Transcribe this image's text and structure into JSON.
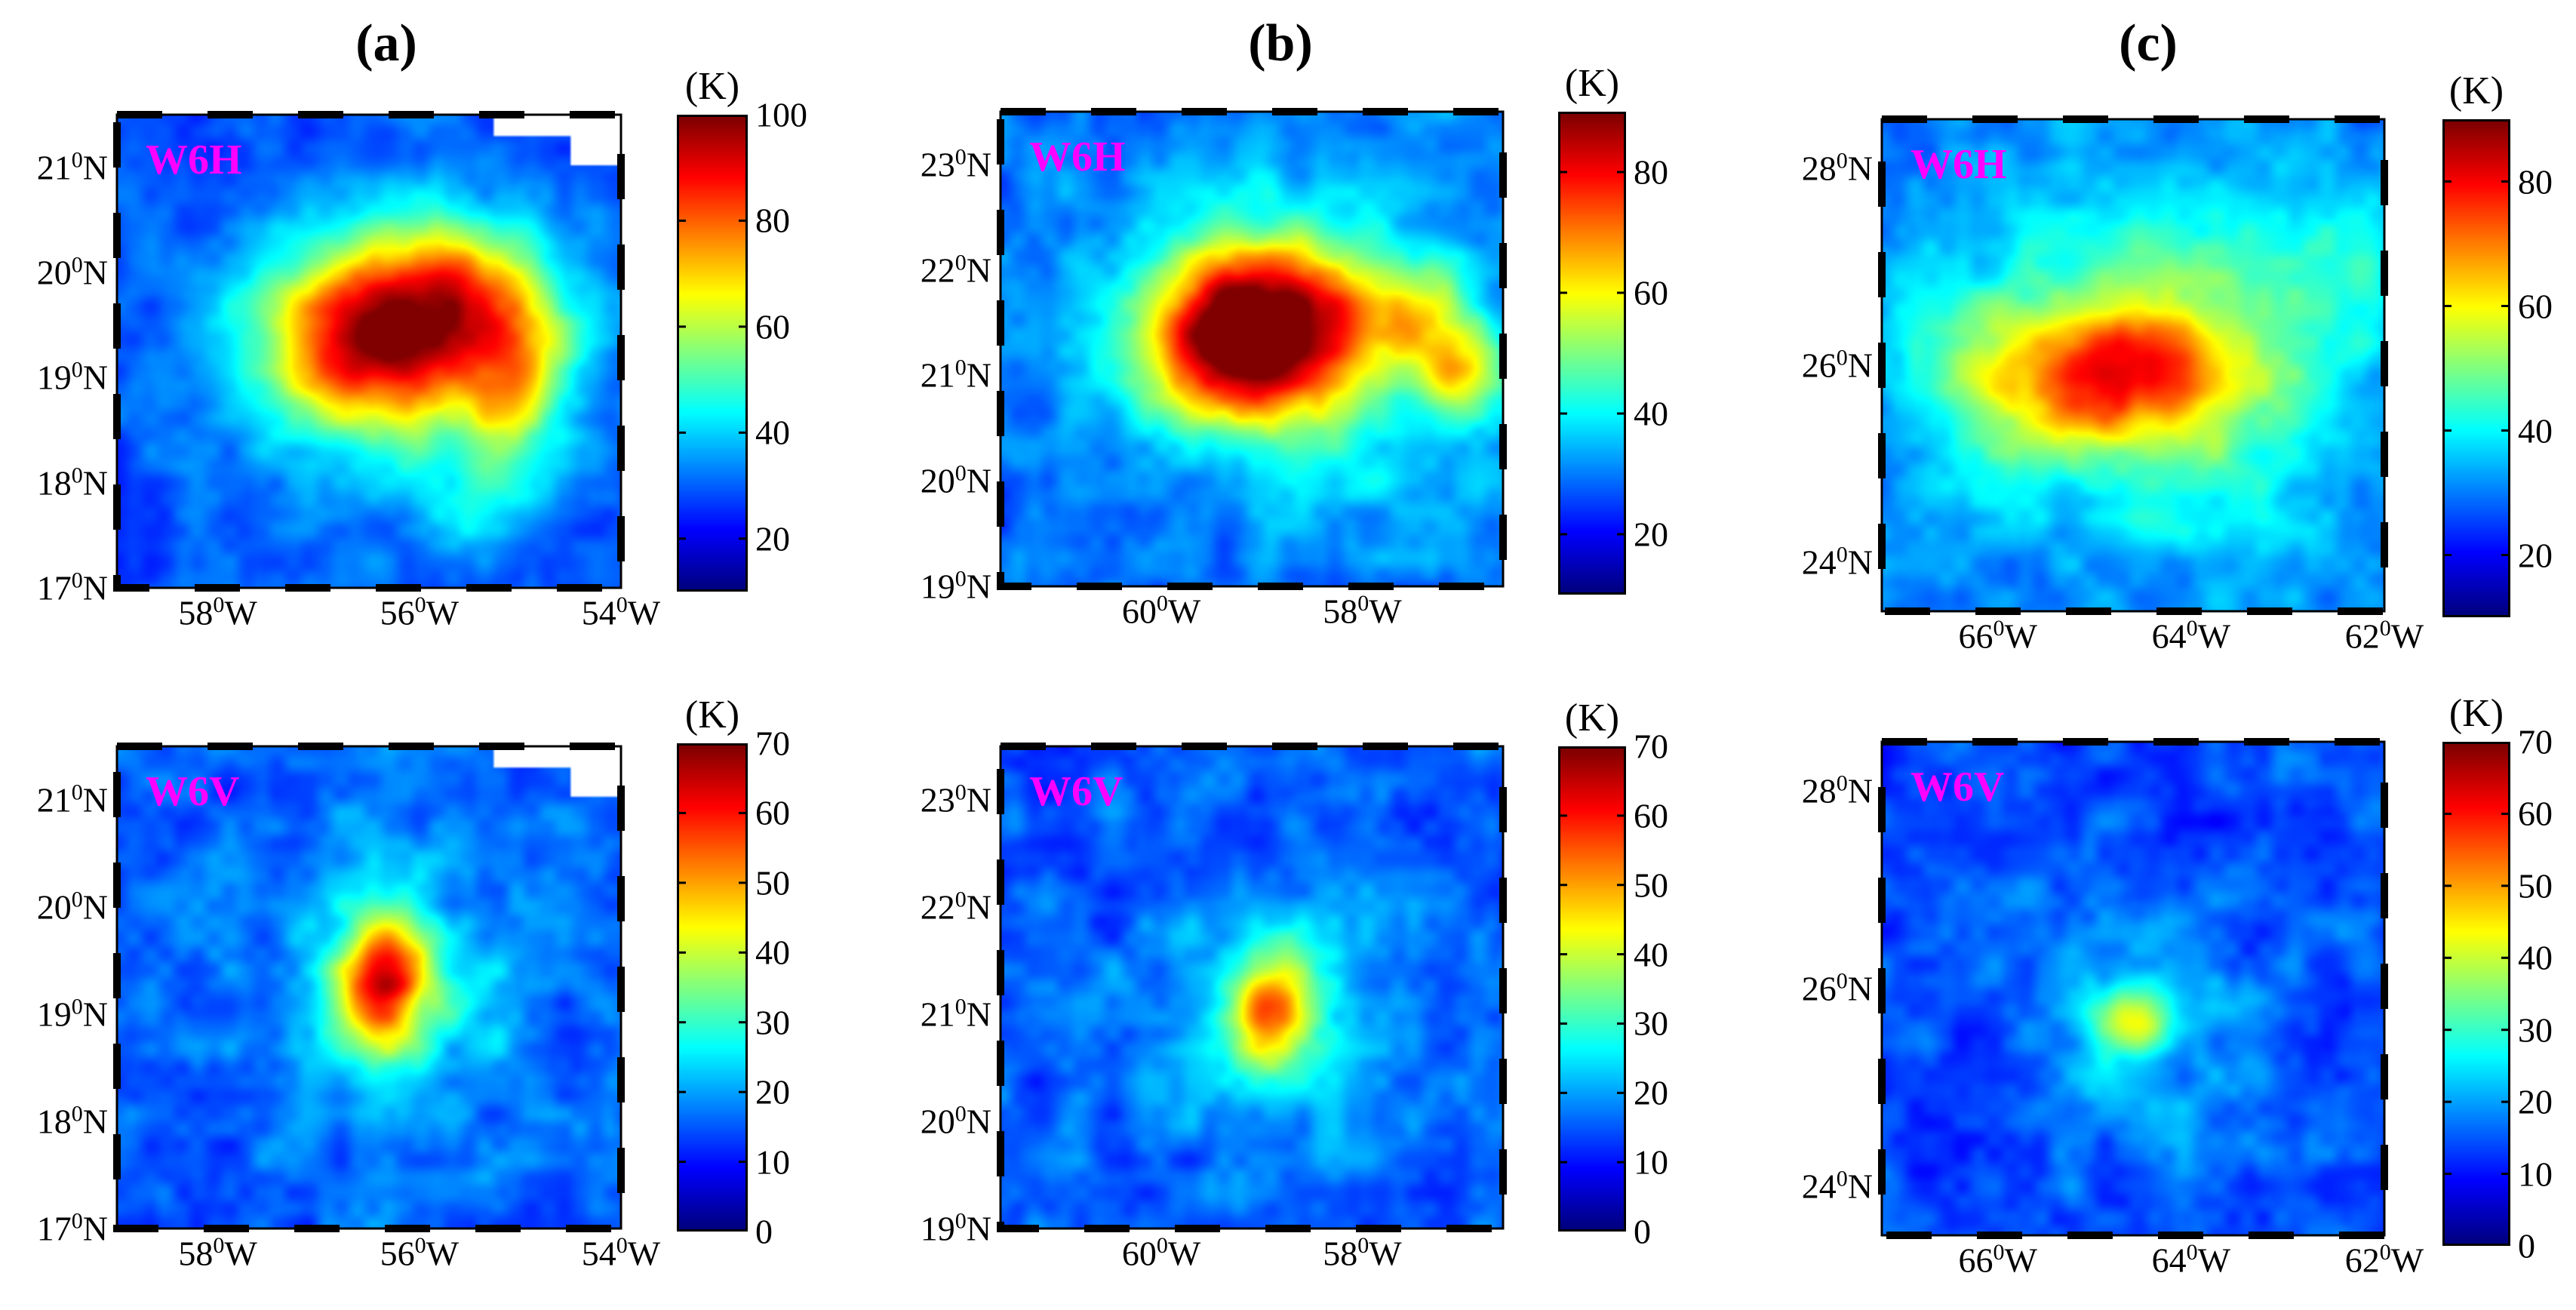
{
  "figure": {
    "column_titles": [
      "(a)",
      "(b)",
      "(c)"
    ],
    "colorbar_unit": "(K)"
  },
  "chart_data": [
    {
      "type": "heatmap",
      "id": "a-W6H",
      "column": "(a)",
      "channel": "W6H",
      "unit": "(K)",
      "xlim": [
        -59.0,
        -54.0
      ],
      "ylim": [
        17.0,
        21.5
      ],
      "xticks": [
        {
          "value": -58,
          "deg": "58",
          "hemi": "W"
        },
        {
          "value": -56,
          "deg": "56",
          "hemi": "W"
        },
        {
          "value": -54,
          "deg": "54",
          "hemi": "W"
        }
      ],
      "yticks": [
        {
          "value": 21,
          "deg": "21",
          "hemi": "N"
        },
        {
          "value": 20,
          "deg": "20",
          "hemi": "N"
        },
        {
          "value": 19,
          "deg": "19",
          "hemi": "N"
        },
        {
          "value": 18,
          "deg": "18",
          "hemi": "N"
        },
        {
          "value": 17,
          "deg": "17",
          "hemi": "N"
        }
      ],
      "clim": [
        10,
        100
      ],
      "cticks": [
        100,
        80,
        60,
        40,
        20
      ],
      "background": 28,
      "missing_corner": true,
      "features": [
        {
          "x": -56.4,
          "y": 19.4,
          "sx": 0.75,
          "sy": 0.6,
          "amp": 62
        },
        {
          "x": -56.0,
          "y": 19.25,
          "sx": 1.4,
          "sy": 1.05,
          "amp": 14
        },
        {
          "x": -55.5,
          "y": 19.9,
          "sx": 0.5,
          "sy": 0.4,
          "amp": 22
        },
        {
          "x": -55.0,
          "y": 19.2,
          "sx": 0.38,
          "sy": 0.5,
          "amp": 26
        },
        {
          "x": -55.2,
          "y": 18.3,
          "sx": 0.3,
          "sy": 0.55,
          "amp": 12
        },
        {
          "x": -55.6,
          "y": 17.7,
          "sx": 0.3,
          "sy": 0.3,
          "amp": 10
        }
      ]
    },
    {
      "type": "heatmap",
      "id": "b-W6H",
      "column": "(b)",
      "channel": "W6H",
      "unit": "(K)",
      "xlim": [
        -61.6,
        -56.6
      ],
      "ylim": [
        19.0,
        23.5
      ],
      "xticks": [
        {
          "value": -60,
          "deg": "60",
          "hemi": "W"
        },
        {
          "value": -58,
          "deg": "58",
          "hemi": "W"
        }
      ],
      "yticks": [
        {
          "value": 23,
          "deg": "23",
          "hemi": "N"
        },
        {
          "value": 22,
          "deg": "22",
          "hemi": "N"
        },
        {
          "value": 21,
          "deg": "21",
          "hemi": "N"
        },
        {
          "value": 20,
          "deg": "20",
          "hemi": "N"
        },
        {
          "value": 19,
          "deg": "19",
          "hemi": "N"
        }
      ],
      "clim": [
        10,
        90
      ],
      "cticks": [
        80,
        60,
        40,
        20
      ],
      "background": 28,
      "missing_corner": false,
      "features": [
        {
          "x": -59.1,
          "y": 21.4,
          "sx": 0.7,
          "sy": 0.55,
          "amp": 62
        },
        {
          "x": -58.8,
          "y": 21.5,
          "sx": 1.45,
          "sy": 1.0,
          "amp": 15
        },
        {
          "x": -57.6,
          "y": 21.6,
          "sx": 0.5,
          "sy": 0.35,
          "amp": 20
        },
        {
          "x": -57.0,
          "y": 21.0,
          "sx": 0.3,
          "sy": 0.3,
          "amp": 24
        },
        {
          "x": -57.6,
          "y": 20.2,
          "sx": 0.7,
          "sy": 0.7,
          "amp": 5
        }
      ]
    },
    {
      "type": "heatmap",
      "id": "c-W6H",
      "column": "(c)",
      "channel": "W6H",
      "unit": "(K)",
      "xlim": [
        -67.2,
        -62.0
      ],
      "ylim": [
        23.5,
        28.5
      ],
      "xticks": [
        {
          "value": -66,
          "deg": "66",
          "hemi": "W"
        },
        {
          "value": -64,
          "deg": "64",
          "hemi": "W"
        },
        {
          "value": -62,
          "deg": "62",
          "hemi": "W"
        }
      ],
      "yticks": [
        {
          "value": 28,
          "deg": "28",
          "hemi": "N"
        },
        {
          "value": 26,
          "deg": "26",
          "hemi": "N"
        },
        {
          "value": 24,
          "deg": "24",
          "hemi": "N"
        }
      ],
      "clim": [
        10,
        90
      ],
      "cticks": [
        80,
        60,
        40,
        20
      ],
      "background": 30,
      "missing_corner": false,
      "features": [
        {
          "x": -64.9,
          "y": 25.9,
          "sx": 1.0,
          "sy": 0.55,
          "amp": 38
        },
        {
          "x": -64.6,
          "y": 26.1,
          "sx": 1.7,
          "sy": 1.2,
          "amp": 12
        },
        {
          "x": -63.0,
          "y": 27.0,
          "sx": 1.2,
          "sy": 0.55,
          "amp": 8
        },
        {
          "x": -63.6,
          "y": 24.8,
          "sx": 0.9,
          "sy": 0.9,
          "amp": 5
        }
      ]
    },
    {
      "type": "heatmap",
      "id": "a-W6V",
      "column": "(a)",
      "channel": "W6V",
      "unit": "(K)",
      "xlim": [
        -59.0,
        -54.0
      ],
      "ylim": [
        17.0,
        21.5
      ],
      "xticks": [
        {
          "value": -58,
          "deg": "58",
          "hemi": "W"
        },
        {
          "value": -56,
          "deg": "56",
          "hemi": "W"
        },
        {
          "value": -54,
          "deg": "54",
          "hemi": "W"
        }
      ],
      "yticks": [
        {
          "value": 21,
          "deg": "21",
          "hemi": "N"
        },
        {
          "value": 20,
          "deg": "20",
          "hemi": "N"
        },
        {
          "value": 19,
          "deg": "19",
          "hemi": "N"
        },
        {
          "value": 18,
          "deg": "18",
          "hemi": "N"
        },
        {
          "value": 17,
          "deg": "17",
          "hemi": "N"
        }
      ],
      "clim": [
        0,
        70
      ],
      "cticks": [
        70,
        60,
        50,
        40,
        30,
        20,
        10,
        0
      ],
      "background": 15,
      "missing_corner": true,
      "features": [
        {
          "x": -56.35,
          "y": 19.3,
          "sx": 0.3,
          "sy": 0.42,
          "amp": 38
        },
        {
          "x": -56.4,
          "y": 19.2,
          "sx": 0.75,
          "sy": 0.85,
          "amp": 12
        },
        {
          "x": -55.3,
          "y": 19.0,
          "sx": 0.5,
          "sy": 0.6,
          "amp": 4
        }
      ]
    },
    {
      "type": "heatmap",
      "id": "b-W6V",
      "column": "(b)",
      "channel": "W6V",
      "unit": "(K)",
      "xlim": [
        -61.6,
        -56.6
      ],
      "ylim": [
        19.0,
        23.5
      ],
      "xticks": [
        {
          "value": -60,
          "deg": "60",
          "hemi": "W"
        },
        {
          "value": -58,
          "deg": "58",
          "hemi": "W"
        }
      ],
      "yticks": [
        {
          "value": 23,
          "deg": "23",
          "hemi": "N"
        },
        {
          "value": 22,
          "deg": "22",
          "hemi": "N"
        },
        {
          "value": 21,
          "deg": "21",
          "hemi": "N"
        },
        {
          "value": 20,
          "deg": "20",
          "hemi": "N"
        },
        {
          "value": 19,
          "deg": "19",
          "hemi": "N"
        }
      ],
      "clim": [
        0,
        70
      ],
      "cticks": [
        70,
        60,
        50,
        40,
        30,
        20,
        10,
        0
      ],
      "background": 15,
      "missing_corner": false,
      "features": [
        {
          "x": -58.9,
          "y": 21.05,
          "sx": 0.3,
          "sy": 0.38,
          "amp": 30
        },
        {
          "x": -58.9,
          "y": 20.95,
          "sx": 0.8,
          "sy": 0.85,
          "amp": 10
        }
      ]
    },
    {
      "type": "heatmap",
      "id": "c-W6V",
      "column": "(c)",
      "channel": "W6V",
      "unit": "(K)",
      "xlim": [
        -67.2,
        -62.0
      ],
      "ylim": [
        23.5,
        28.5
      ],
      "xticks": [
        {
          "value": -66,
          "deg": "66",
          "hemi": "W"
        },
        {
          "value": -64,
          "deg": "64",
          "hemi": "W"
        },
        {
          "value": -62,
          "deg": "62",
          "hemi": "W"
        }
      ],
      "yticks": [
        {
          "value": 28,
          "deg": "28",
          "hemi": "N"
        },
        {
          "value": 26,
          "deg": "26",
          "hemi": "N"
        },
        {
          "value": 24,
          "deg": "24",
          "hemi": "N"
        }
      ],
      "clim": [
        0,
        70
      ],
      "cticks": [
        70,
        60,
        50,
        40,
        30,
        20,
        10,
        0
      ],
      "background": 14,
      "missing_corner": false,
      "features": [
        {
          "x": -64.55,
          "y": 25.7,
          "sx": 0.3,
          "sy": 0.22,
          "amp": 18
        },
        {
          "x": -64.5,
          "y": 25.6,
          "sx": 0.85,
          "sy": 0.75,
          "amp": 9
        }
      ]
    }
  ]
}
